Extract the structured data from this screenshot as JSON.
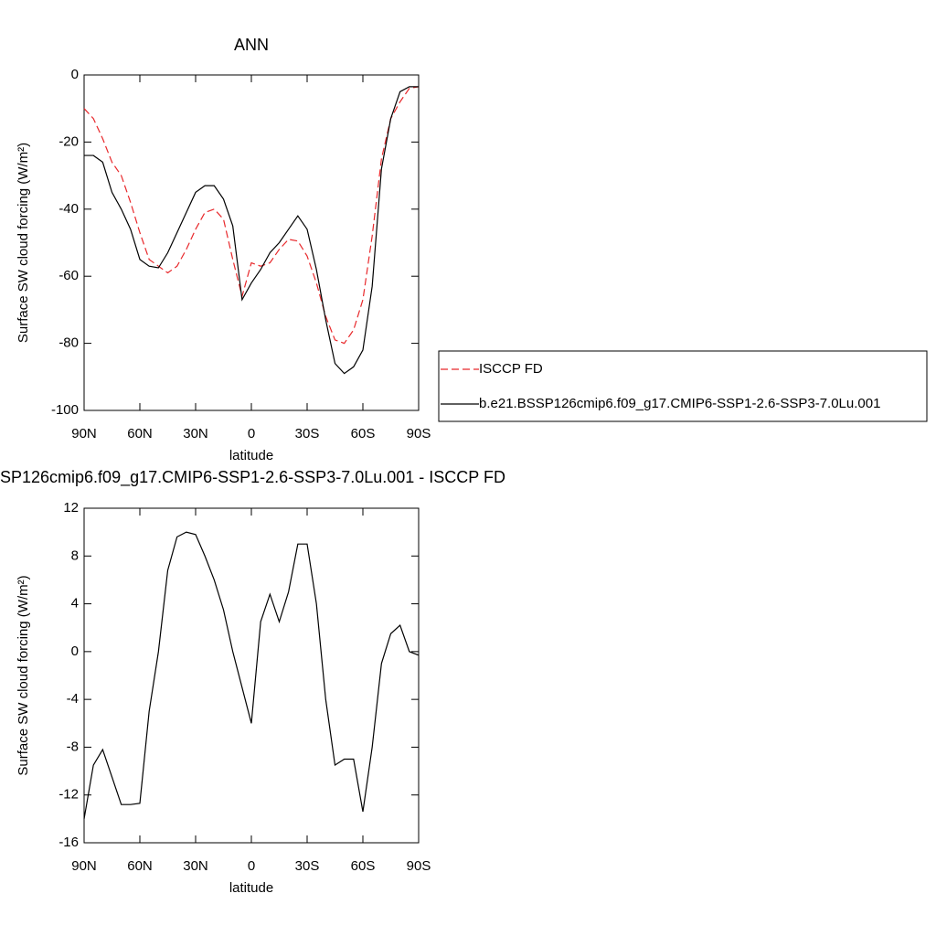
{
  "chart_data": [
    {
      "type": "line",
      "title": "ANN",
      "xlabel": "latitude",
      "ylabel": "Surface SW cloud forcing (W/m²)",
      "x": [
        90,
        85,
        80,
        75,
        70,
        65,
        60,
        55,
        50,
        45,
        40,
        35,
        30,
        25,
        20,
        15,
        10,
        5,
        0,
        -5,
        -10,
        -15,
        -20,
        -25,
        -30,
        -35,
        -40,
        -45,
        -50,
        -55,
        -60,
        -65,
        -70,
        -75,
        -80,
        -85,
        -90
      ],
      "xlim": [
        90,
        -90
      ],
      "xticks": [
        {
          "value": 90,
          "label": "90N"
        },
        {
          "value": 60,
          "label": "60N"
        },
        {
          "value": 30,
          "label": "30N"
        },
        0,
        {
          "value": -30,
          "label": "30S"
        },
        {
          "value": -60,
          "label": "60S"
        },
        {
          "value": -90,
          "label": "90S"
        }
      ],
      "ylim": [
        -100,
        0
      ],
      "yticks": [
        -100,
        -80,
        -60,
        -40,
        -20,
        0
      ],
      "legend": "outside-right",
      "series": [
        {
          "name": "ISCCP FD",
          "color": "#e8282b",
          "dash": "dashed",
          "values": [
            -10,
            -13,
            -19,
            -26,
            -30,
            -38,
            -47,
            -55,
            -57,
            -59,
            -57,
            -52,
            -46,
            -41,
            -40,
            -43,
            -55,
            -66,
            -56,
            -57,
            -56,
            -52,
            -49,
            -49.5,
            -54,
            -62,
            -72,
            -79,
            -80,
            -76,
            -67,
            -48,
            -25,
            -13,
            -8,
            -4,
            -3.5
          ]
        },
        {
          "name": "b.e21.BSSP126cmip6.f09_g17.CMIP6-SSP1-2.6-SSP3-7.0Lu.001",
          "color": "#000000",
          "dash": "solid",
          "values": [
            -24,
            -24,
            -26,
            -35,
            -40,
            -46,
            -55,
            -57,
            -57.5,
            -53,
            -47,
            -41,
            -35,
            -33,
            -33,
            -37,
            -45,
            -67,
            -62,
            -58,
            -53,
            -50,
            -46,
            -42,
            -46,
            -58,
            -73,
            -86,
            -89,
            -87,
            -82,
            -63,
            -28,
            -13,
            -5,
            -3.5,
            -3.5
          ]
        }
      ]
    },
    {
      "type": "line",
      "title": "SP126cmip6.f09_g17.CMIP6-SSP1-2.6-SSP3-7.0Lu.001 - ISCCP FD",
      "xlabel": "latitude",
      "ylabel": "Surface SW cloud forcing (W/m²)",
      "x": [
        90,
        85,
        80,
        75,
        70,
        65,
        60,
        55,
        50,
        45,
        40,
        35,
        30,
        25,
        20,
        15,
        10,
        5,
        0,
        -5,
        -10,
        -15,
        -20,
        -25,
        -30,
        -35,
        -40,
        -45,
        -50,
        -55,
        -60,
        -65,
        -70,
        -75,
        -80,
        -85,
        -90
      ],
      "xlim": [
        90,
        -90
      ],
      "xticks": [
        {
          "value": 90,
          "label": "90N"
        },
        {
          "value": 60,
          "label": "60N"
        },
        {
          "value": 30,
          "label": "30N"
        },
        0,
        {
          "value": -30,
          "label": "30S"
        },
        {
          "value": -60,
          "label": "60S"
        },
        {
          "value": -90,
          "label": "90S"
        }
      ],
      "ylim": [
        -16,
        12
      ],
      "yticks": [
        -16,
        -12,
        -8,
        -4,
        0,
        4,
        8,
        12
      ],
      "series": [
        {
          "color": "#000000",
          "dash": "solid",
          "values": [
            -14,
            -9.5,
            -8.2,
            -10.5,
            -12.8,
            -12.8,
            -12.7,
            -5,
            0,
            6.8,
            9.6,
            10,
            9.8,
            8,
            6,
            3.5,
            0,
            -3,
            -6,
            2.5,
            4.8,
            2.5,
            5,
            9,
            9,
            4,
            -4,
            -9.5,
            -9,
            -9,
            -13.4,
            -8,
            -1,
            1.5,
            2.2,
            0,
            -0.3
          ]
        }
      ]
    }
  ]
}
